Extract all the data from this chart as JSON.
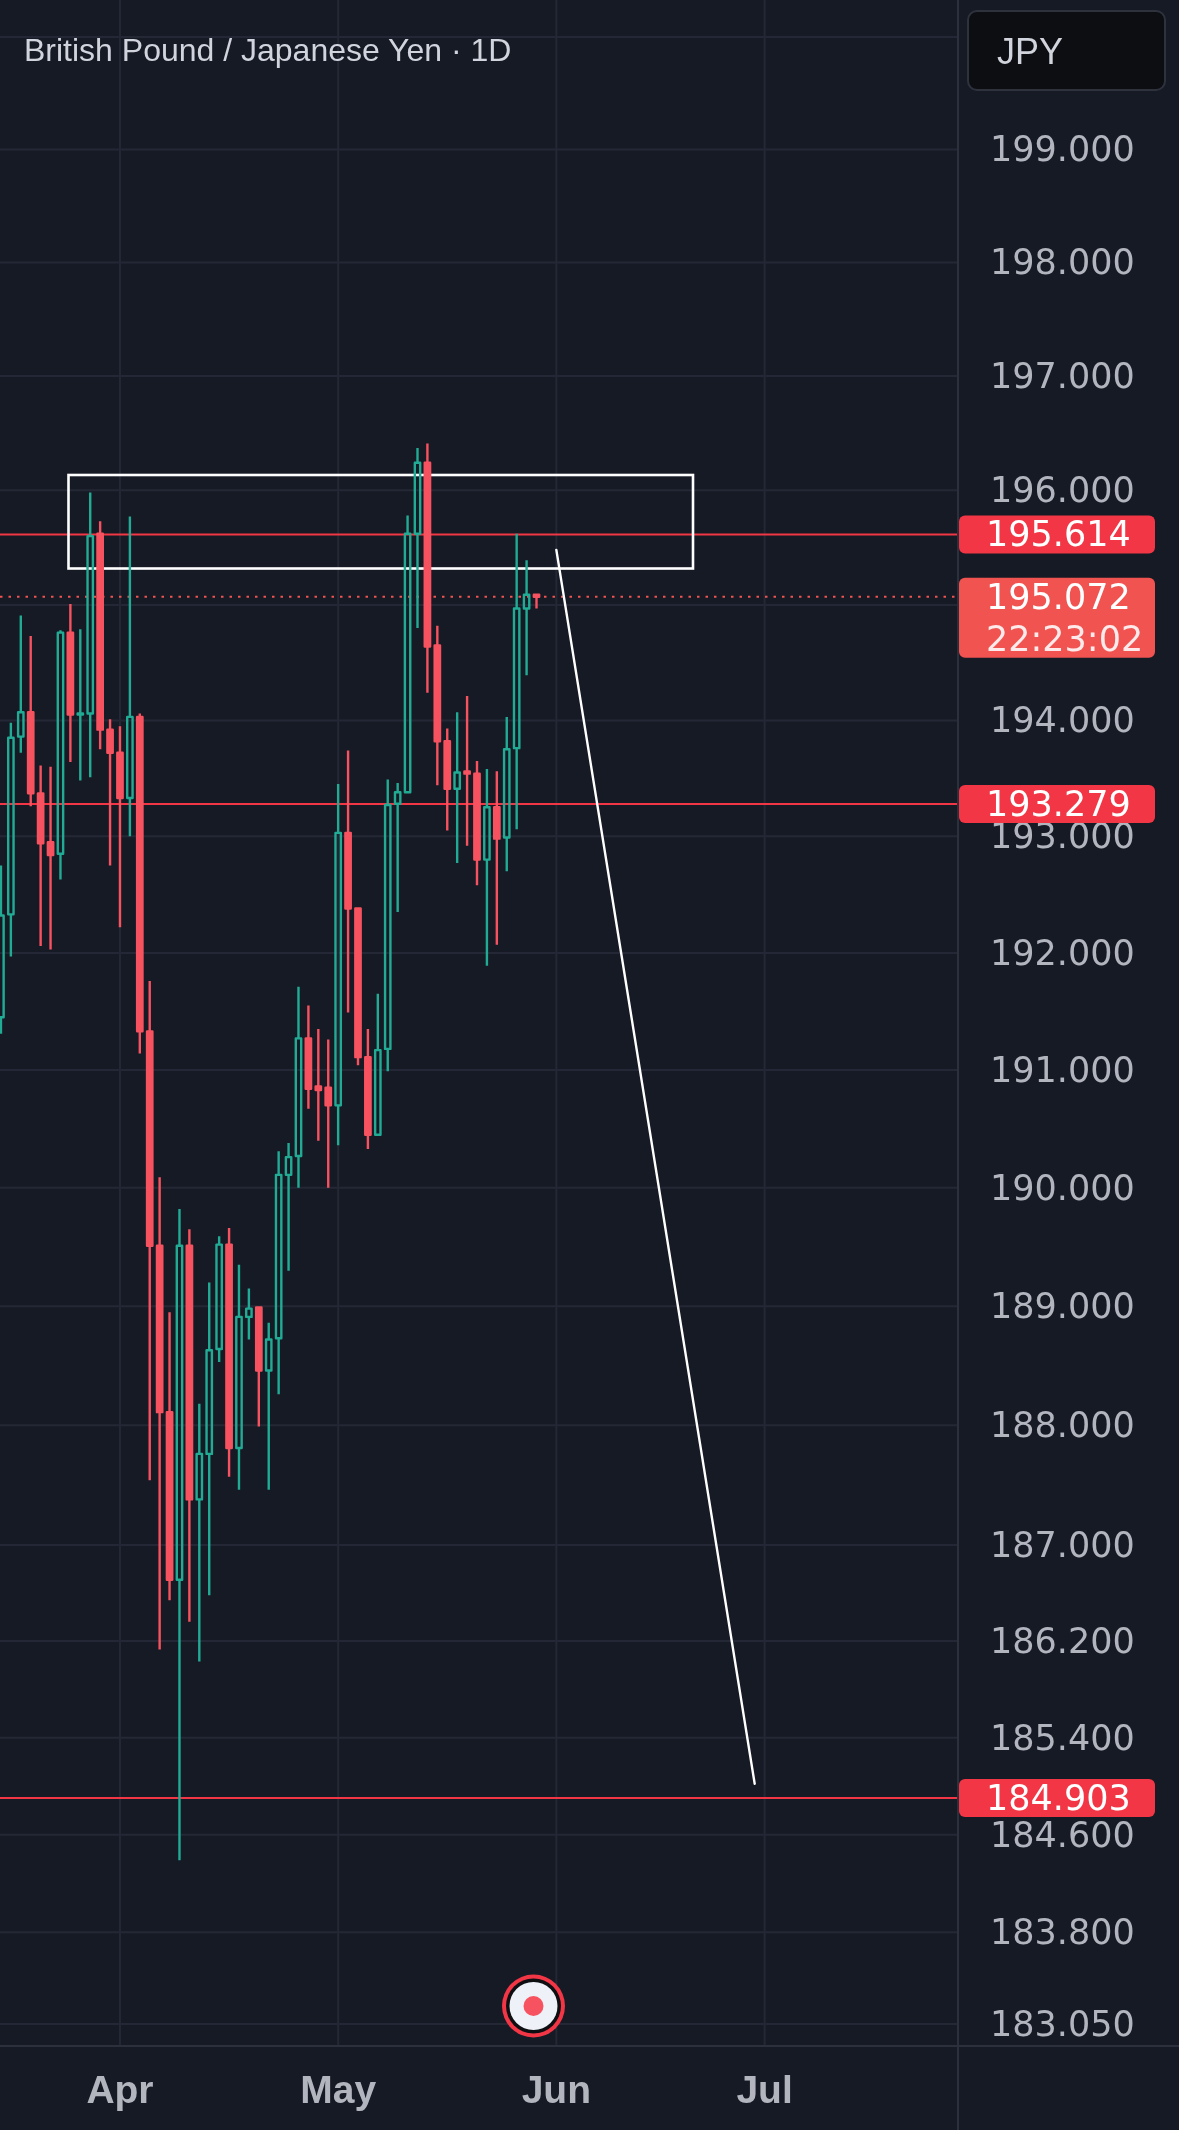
{
  "chart_data": {
    "type": "candlestick",
    "title": "British Pound / Japanese Yen · 1D",
    "ylabel": "JPY",
    "categories": [
      null,
      null,
      null,
      null,
      null,
      null,
      null,
      null,
      null,
      null,
      null,
      null,
      "Apr",
      null,
      null,
      null,
      null,
      null,
      null,
      null,
      null,
      null,
      null,
      null,
      null,
      null,
      null,
      null,
      null,
      null,
      null,
      null,
      null,
      null,
      "May",
      null,
      null,
      null,
      null,
      null,
      null,
      null,
      null,
      null,
      null,
      null,
      null,
      null,
      null,
      null,
      null,
      null,
      null,
      null,
      null,
      null,
      "Jun",
      null,
      null,
      null,
      null,
      null,
      null,
      null,
      null,
      null,
      null,
      null,
      null,
      null,
      null,
      null,
      null,
      null,
      null,
      null,
      null,
      "Jul",
      null,
      null,
      null,
      null,
      null,
      null,
      null,
      null,
      null,
      null,
      null,
      null,
      null,
      null,
      null,
      null,
      null,
      null,
      null
    ],
    "ohlc": [
      [
        191.45,
        192.75,
        191.31,
        192.32
      ],
      [
        192.33,
        193.98,
        191.97,
        193.85
      ],
      [
        193.86,
        194.91,
        193.72,
        194.07
      ],
      [
        194.07,
        194.73,
        193.26,
        193.37
      ],
      [
        193.37,
        193.61,
        192.06,
        192.94
      ],
      [
        192.95,
        193.6,
        192.03,
        192.84
      ],
      [
        192.85,
        194.78,
        192.63,
        194.76
      ],
      [
        194.76,
        195.01,
        193.64,
        194.05
      ],
      [
        194.05,
        194.79,
        193.48,
        194.06
      ],
      [
        194.06,
        195.98,
        193.51,
        195.6
      ],
      [
        195.62,
        195.73,
        193.75,
        193.92
      ],
      [
        193.92,
        194.01,
        192.75,
        193.72
      ],
      [
        193.72,
        193.95,
        192.22,
        193.33
      ],
      [
        193.33,
        195.77,
        193.0,
        194.03
      ],
      [
        194.03,
        194.06,
        191.14,
        191.33
      ],
      [
        191.33,
        191.76,
        187.54,
        189.51
      ],
      [
        189.51,
        190.09,
        186.13,
        188.11
      ],
      [
        188.11,
        188.95,
        186.54,
        186.71
      ],
      [
        186.71,
        189.82,
        184.39,
        189.51
      ],
      [
        189.51,
        189.65,
        186.36,
        187.38
      ],
      [
        187.38,
        188.18,
        186.03,
        187.76
      ],
      [
        187.76,
        189.2,
        186.58,
        188.63
      ],
      [
        188.64,
        189.59,
        188.53,
        189.52
      ],
      [
        189.52,
        189.66,
        187.57,
        187.81
      ],
      [
        187.81,
        189.35,
        187.46,
        188.91
      ],
      [
        188.91,
        189.15,
        188.72,
        188.98
      ],
      [
        188.99,
        189.0,
        187.99,
        188.46
      ],
      [
        188.46,
        188.86,
        187.46,
        188.72
      ],
      [
        188.73,
        190.31,
        188.26,
        190.11
      ],
      [
        190.11,
        190.38,
        189.3,
        190.26
      ],
      [
        190.27,
        191.71,
        190.0,
        191.27
      ],
      [
        191.27,
        191.55,
        190.67,
        190.84
      ],
      [
        190.86,
        191.35,
        190.4,
        190.83
      ],
      [
        190.85,
        191.26,
        190.0,
        190.7
      ],
      [
        190.7,
        193.45,
        190.36,
        193.03
      ],
      [
        193.03,
        193.74,
        191.49,
        192.38
      ],
      [
        192.38,
        192.38,
        191.04,
        191.11
      ],
      [
        191.11,
        191.35,
        190.33,
        190.45
      ],
      [
        190.45,
        191.65,
        190.44,
        191.17
      ],
      [
        191.18,
        193.49,
        190.99,
        193.27
      ],
      [
        193.28,
        193.46,
        192.35,
        193.38
      ],
      [
        193.38,
        195.78,
        193.38,
        195.62
      ],
      [
        195.62,
        196.37,
        194.8,
        196.24
      ],
      [
        196.24,
        196.41,
        194.24,
        194.64
      ],
      [
        194.65,
        194.82,
        193.44,
        193.82
      ],
      [
        193.82,
        193.93,
        193.05,
        193.41
      ],
      [
        193.41,
        194.07,
        192.77,
        193.55
      ],
      [
        193.56,
        194.21,
        192.92,
        193.54
      ],
      [
        193.54,
        193.65,
        192.58,
        192.8
      ],
      [
        192.8,
        193.58,
        191.89,
        193.25
      ],
      [
        193.25,
        193.56,
        192.07,
        192.98
      ],
      [
        192.99,
        194.03,
        192.7,
        193.75
      ],
      [
        193.76,
        195.62,
        193.06,
        194.97
      ],
      [
        194.97,
        195.39,
        194.39,
        195.09
      ],
      [
        195.09,
        195.09,
        194.97,
        195.072
      ],
      null,
      null,
      null,
      null,
      null,
      null,
      null,
      null,
      null,
      null,
      null,
      null,
      null,
      null,
      null,
      null,
      null,
      null,
      null,
      null,
      null,
      null,
      null,
      null,
      null,
      null,
      null,
      null,
      null,
      null,
      null,
      null,
      null,
      null,
      null,
      null,
      null,
      null,
      null,
      null,
      null,
      null
    ],
    "colors": [
      "#22ab94",
      "#22ab94",
      "#22ab94",
      "#f7525f",
      "#f7525f",
      "#f7525f",
      "#22ab94",
      "#f7525f",
      "#22ab94",
      "#22ab94",
      "#f7525f",
      "#f7525f",
      "#f7525f",
      "#22ab94",
      "#f7525f",
      "#f7525f",
      "#f7525f",
      "#f7525f",
      "#22ab94",
      "#f7525f",
      "#22ab94",
      "#22ab94",
      "#22ab94",
      "#f7525f",
      "#22ab94",
      "#22ab94",
      "#f7525f",
      "#22ab94",
      "#22ab94",
      "#22ab94",
      "#22ab94",
      "#f7525f",
      "#f7525f",
      "#f7525f",
      "#22ab94",
      "#f7525f",
      "#f7525f",
      "#f7525f",
      "#22ab94",
      "#22ab94",
      "#22ab94",
      "#22ab94",
      "#22ab94",
      "#f7525f",
      "#f7525f",
      "#f7525f",
      "#22ab94",
      "#f7525f",
      "#f7525f",
      "#22ab94",
      "#f7525f",
      "#22ab94",
      "#22ab94",
      "#22ab94",
      "#f7525f",
      null,
      null,
      null,
      null,
      null,
      null,
      null,
      null,
      null,
      null,
      null,
      null,
      null,
      null,
      null,
      null,
      null,
      null,
      null,
      null,
      null,
      null,
      null,
      null,
      null,
      null,
      null,
      null,
      null,
      null,
      null,
      null,
      null,
      null,
      null,
      null,
      null,
      null,
      null,
      null,
      null,
      null
    ],
    "series": [
      {
        "type": "line",
        "color": "#ffffff",
        "values": [
          null,
          null,
          null,
          null,
          null,
          null,
          null,
          null,
          null,
          null,
          null,
          null,
          null,
          null,
          null,
          null,
          null,
          null,
          null,
          null,
          null,
          null,
          null,
          null,
          null,
          null,
          null,
          null,
          null,
          null,
          null,
          null,
          null,
          null,
          null,
          null,
          null,
          null,
          null,
          null,
          null,
          null,
          null,
          null,
          null,
          null,
          null,
          null,
          null,
          null,
          null,
          null,
          null,
          null,
          null,
          null,
          195.48,
          null,
          null,
          null,
          null,
          null,
          null,
          null,
          null,
          null,
          null,
          null,
          null,
          null,
          null,
          null,
          null,
          null,
          null,
          null,
          185.02,
          null,
          null,
          null,
          null,
          null,
          null,
          null,
          null,
          null,
          null,
          null,
          null,
          null,
          null,
          null,
          null,
          null,
          null,
          null,
          null
        ]
      }
    ],
    "ylim": [
      182.87,
      200.33
    ],
    "yticks": [
      {
        "value": 200,
        "label": null
      },
      {
        "value": 199,
        "label": "199.000"
      },
      {
        "value": 198,
        "label": "198.000"
      },
      {
        "value": 197,
        "label": "197.000"
      },
      {
        "value": 196,
        "label": "196.000"
      },
      {
        "value": 195,
        "label": null
      },
      {
        "value": 194,
        "label": "194.000"
      },
      {
        "value": 193,
        "label": "193.000"
      },
      {
        "value": 192,
        "label": "192.000"
      },
      {
        "value": 191,
        "label": "191.000"
      },
      {
        "value": 190,
        "label": "190.000"
      },
      {
        "value": 189,
        "label": "189.000"
      },
      {
        "value": 188,
        "label": "188.000"
      },
      {
        "value": 187,
        "label": "187.000"
      },
      {
        "value": 186.2,
        "label": "186.200"
      },
      {
        "value": 185.4,
        "label": "185.400"
      },
      {
        "value": 184.6,
        "label": "184.600"
      },
      {
        "value": 183.8,
        "label": "183.800"
      },
      {
        "value": 183.05,
        "label": "183.050"
      }
    ],
    "log": true,
    "grid": true,
    "ref_lines": [
      {
        "axis": "y",
        "value": 195.614,
        "label": "195.614",
        "color": "#f23645"
      },
      {
        "axis": "y",
        "value": 193.279,
        "label": "193.279",
        "color": "#f23645"
      },
      {
        "axis": "y",
        "value": 184.903,
        "label": "184.903",
        "color": "#f23645"
      },
      {
        "axis": "y",
        "value": 195.072,
        "label": "195.072\n22:23:02",
        "color": "#f05350",
        "line_style": "dotted"
      }
    ]
  }
}
